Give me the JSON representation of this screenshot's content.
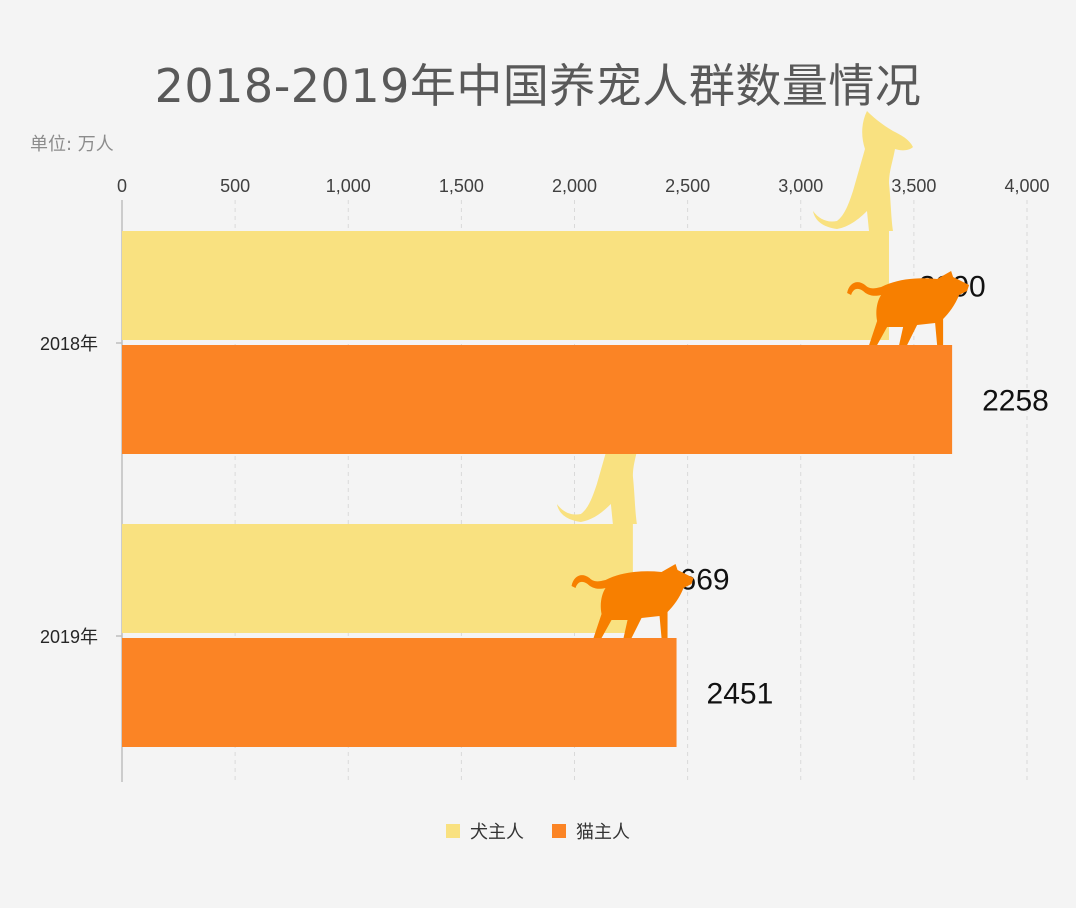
{
  "chart_data": {
    "type": "bar",
    "orientation": "horizontal",
    "title": "2018-2019年中国养宠人群数量情况",
    "unit_label": "单位: 万人",
    "categories": [
      "2018年",
      "2019年"
    ],
    "series": [
      {
        "name": "犬主人",
        "values": [
          3390,
          2258
        ],
        "color": "#f9e180"
      },
      {
        "name": "猫主人",
        "values": [
          3669,
          2451
        ],
        "color": "#fb8425"
      }
    ],
    "value_labels": [
      [
        "3390",
        "2258"
      ],
      [
        "3669",
        "2451"
      ]
    ],
    "xlim": [
      0,
      4000
    ],
    "xticks": [
      "0",
      "500",
      "1,000",
      "1,500",
      "2,000",
      "2,500",
      "3,000",
      "3,500",
      "4,000"
    ],
    "grid": true,
    "legend_position": "bottom"
  },
  "decorations": {
    "dog_icon": "dog-silhouette-icon",
    "cat_icon": "cat-silhouette-icon"
  }
}
